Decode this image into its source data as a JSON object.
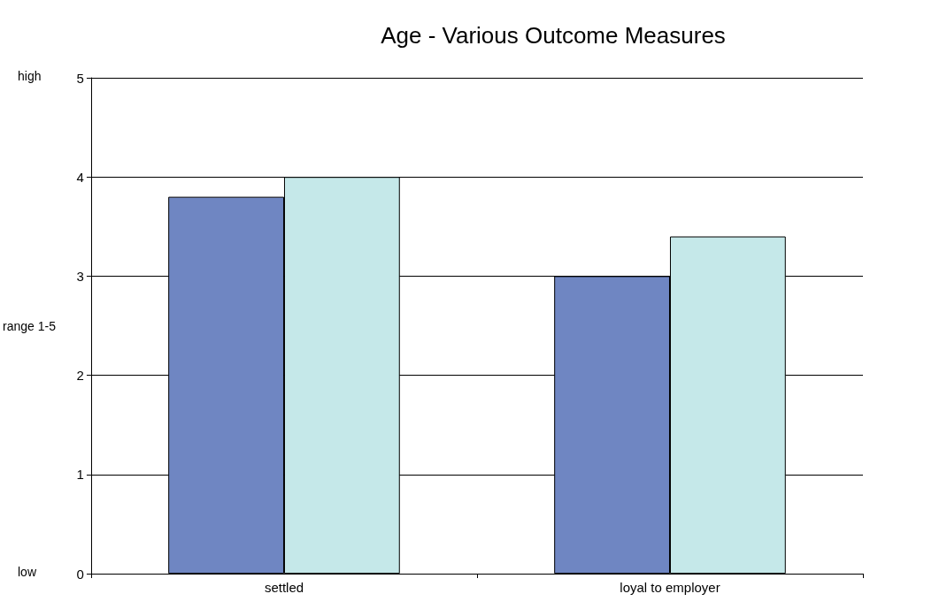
{
  "chart_data": {
    "type": "bar",
    "title": "Age - Various Outcome Measures",
    "ylabel": "range 1-5",
    "categories": [
      "settled",
      "loyal to employer"
    ],
    "series": [
      {
        "color": "#6f86c2",
        "values": [
          3.8,
          3.0
        ]
      },
      {
        "color": "#c5e8e9",
        "values": [
          4.0,
          3.4
        ]
      }
    ],
    "annotations": [
      "low",
      "high"
    ],
    "ylim": [
      0,
      5
    ],
    "yticks": [
      0,
      1,
      2,
      3,
      4,
      5
    ],
    "grid": "y"
  }
}
